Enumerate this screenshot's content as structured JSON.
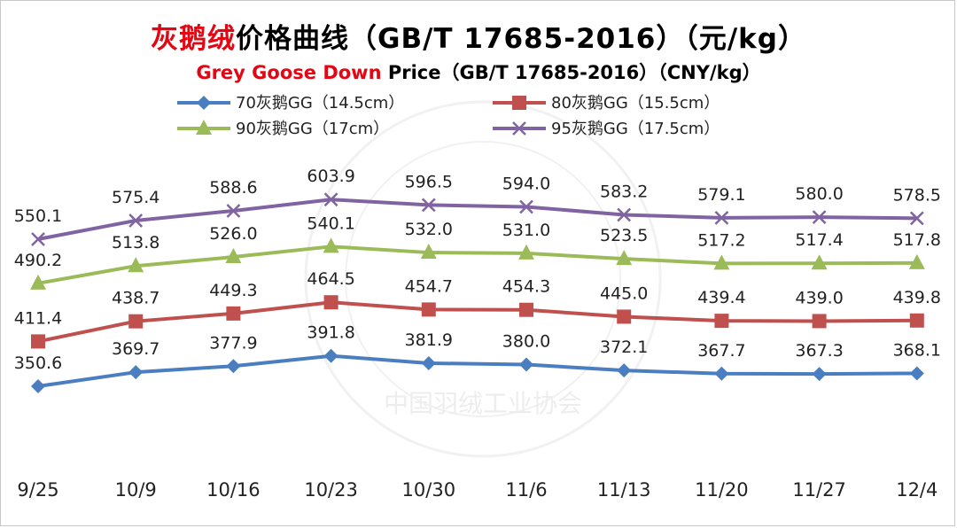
{
  "title": {
    "zh_highlight": "灰鹅绒",
    "zh_rest": "价格曲线（GB/T 17685-2016）（元/kg）",
    "en_highlight": "Grey Goose Down",
    "en_rest": " Price（GB/T 17685-2016）（CNY/kg）"
  },
  "colors": {
    "title_highlight": "#e30613",
    "watermark": "#e6e6e6"
  },
  "watermark_text": "中国羽绒工业协会",
  "chart_data": {
    "type": "line",
    "categories": [
      "9/25",
      "10/9",
      "10/16",
      "10/23",
      "10/30",
      "11/6",
      "11/13",
      "11/20",
      "11/27",
      "12/4"
    ],
    "ylim": [
      320,
      640
    ],
    "grid": false,
    "legend_position": "top",
    "series": [
      {
        "name": "70灰鹅GG（14.5cm）",
        "color": "#4a7ec0",
        "marker": "diamond",
        "values": [
          350.6,
          369.7,
          377.9,
          391.8,
          381.9,
          380.0,
          372.1,
          367.7,
          367.3,
          368.1
        ]
      },
      {
        "name": "80灰鹅GG（15.5cm）",
        "color": "#c0504d",
        "marker": "square",
        "values": [
          411.4,
          438.7,
          449.3,
          464.5,
          454.7,
          454.3,
          445.0,
          439.4,
          439.0,
          439.8
        ]
      },
      {
        "name": "90灰鹅GG（17cm）",
        "color": "#9bbb59",
        "marker": "triangle",
        "values": [
          490.2,
          513.8,
          526.0,
          540.1,
          532.0,
          531.0,
          523.5,
          517.2,
          517.4,
          517.8
        ]
      },
      {
        "name": "95灰鹅GG（17.5cm）",
        "color": "#8064a2",
        "marker": "x",
        "values": [
          550.1,
          575.4,
          588.6,
          603.9,
          596.5,
          594.0,
          583.2,
          579.1,
          580.0,
          578.5
        ]
      }
    ]
  }
}
